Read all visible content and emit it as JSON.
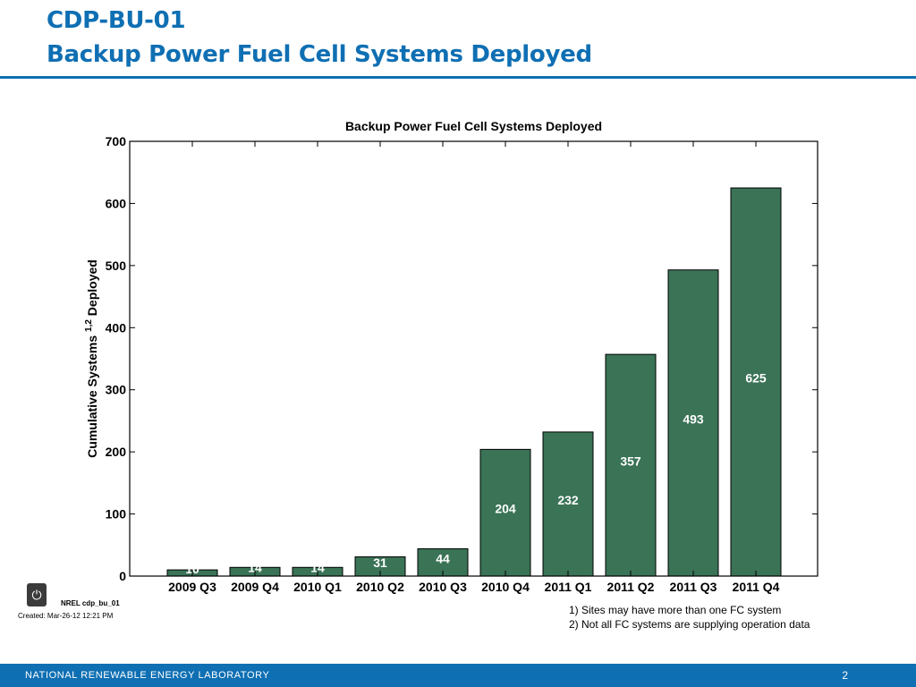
{
  "slide": {
    "title_line1": "CDP-BU-01",
    "title_line2": "Backup Power Fuel Cell Systems Deployed",
    "chart_id": "NREL cdp_bu_01",
    "created": "Created: Mar-26-12 12:21 PM",
    "notes": [
      "1) Sites may have more than one FC system",
      "2) Not all FC systems are supplying operation data"
    ],
    "footer_org": "NATIONAL RENEWABLE ENERGY LABORATORY",
    "page_number": "2",
    "logo_icon": "power-icon"
  },
  "chart_data": {
    "type": "bar",
    "title": "Backup Power Fuel Cell Systems Deployed",
    "xlabel": "",
    "ylabel": "Cumulative Systems",
    "ylabel_superscript": "1,2",
    "ylabel_suffix": "Deployed",
    "categories": [
      "2009 Q3",
      "2009 Q4",
      "2010 Q1",
      "2010 Q2",
      "2010 Q3",
      "2010 Q4",
      "2011 Q1",
      "2011 Q2",
      "2011 Q3",
      "2011 Q4"
    ],
    "values": [
      10,
      14,
      14,
      31,
      44,
      204,
      232,
      357,
      493,
      625
    ],
    "data_labels": [
      "10",
      "14",
      "14",
      "31",
      "44",
      "204",
      "232",
      "357",
      "493",
      "625"
    ],
    "ylim": [
      0,
      700
    ],
    "yticks": [
      0,
      100,
      200,
      300,
      400,
      500,
      600,
      700
    ],
    "bar_color": "#3a7356",
    "grid": false
  }
}
